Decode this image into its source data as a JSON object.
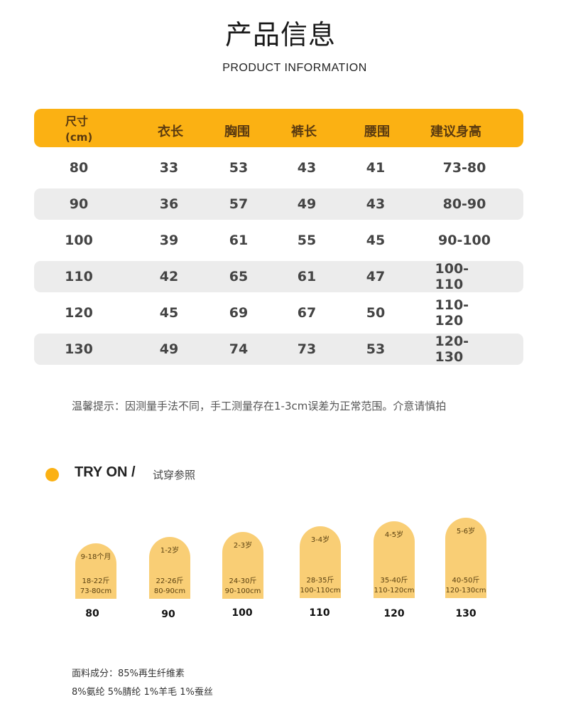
{
  "title": "产品信息",
  "subtitle": "PRODUCT INFORMATION",
  "table": {
    "header": {
      "size_line1": "尺寸",
      "size_line2": "(cm)",
      "length": "衣长",
      "chest": "胸围",
      "pants": "裤长",
      "waist": "腰围",
      "height": "建议身高"
    },
    "rows": [
      [
        "80",
        "33",
        "53",
        "43",
        "41",
        "73-80"
      ],
      [
        "90",
        "36",
        "57",
        "49",
        "43",
        "80-90"
      ],
      [
        "100",
        "39",
        "61",
        "55",
        "45",
        "90-100"
      ],
      [
        "110",
        "42",
        "65",
        "61",
        "47",
        "100-110"
      ],
      [
        "120",
        "45",
        "69",
        "67",
        "50",
        "110-120"
      ],
      [
        "130",
        "49",
        "74",
        "73",
        "53",
        "120-130"
      ]
    ]
  },
  "note": "温馨提示：因测量手法不同，手工测量存在1-3cm误差为正常范围。介意请慎拍",
  "tryon": {
    "title": "TRY ON /",
    "subtitle": "试穿参照",
    "items": [
      {
        "age": "9-18个月",
        "weight": "18-22斤",
        "height": "73-80cm",
        "size": "80"
      },
      {
        "age": "1-2岁",
        "weight": "22-26斤",
        "height": "80-90cm",
        "size": "90"
      },
      {
        "age": "2-3岁",
        "weight": "24-30斤",
        "height": "90-100cm",
        "size": "100"
      },
      {
        "age": "3-4岁",
        "weight": "28-35斤",
        "height": "100-110cm",
        "size": "110"
      },
      {
        "age": "4-5岁",
        "weight": "35-40斤",
        "height": "110-120cm",
        "size": "120"
      },
      {
        "age": "5-6岁",
        "weight": "40-50斤",
        "height": "120-130cm",
        "size": "130"
      }
    ]
  },
  "fabric": {
    "line1": "面料成分：85%再生纤维素",
    "line2": "8%氨纶 5%腈纶   1%羊毛  1%蚕丝"
  },
  "colors": {
    "accent": "#fbb113",
    "pill": "#f9ce75",
    "row_alt": "#ececec"
  }
}
